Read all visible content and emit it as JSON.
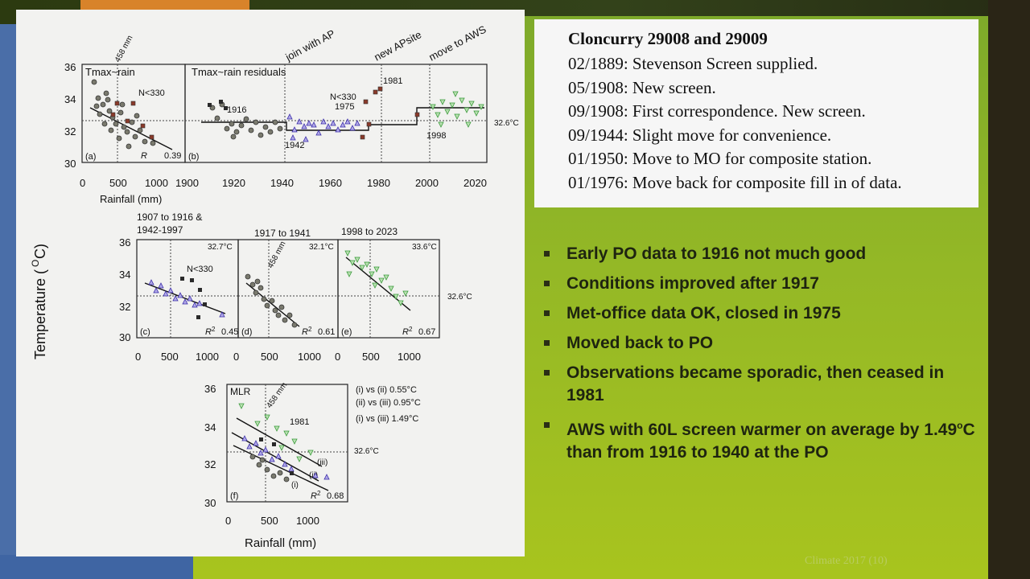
{
  "figure": {
    "y_axis_title": "Temperature (",
    "y_axis_unit": "C)",
    "y_axis_deg": "O",
    "panel_a": {
      "title": "Tmax~rain",
      "letter": "(a)",
      "r2": "R",
      "r2_val": "0.39",
      "n_label": "N<330",
      "top_label": "458 mm",
      "xticks": [
        "0",
        "500",
        "1000"
      ],
      "yticks": [
        "36",
        "34",
        "32",
        "30"
      ],
      "xlabel": "Rainfall (mm)"
    },
    "panel_b": {
      "title": "Tmax~rain residuals",
      "letter": "(b)",
      "xticks": [
        "1900",
        "1920",
        "1940",
        "1960",
        "1980",
        "2000",
        "2020"
      ],
      "events": [
        "join with AP",
        "new APsite",
        "move to AWS"
      ],
      "annotations": [
        "1916",
        "1942",
        "N<330",
        "1975",
        "1981",
        "1998",
        "32.6°C"
      ]
    },
    "panel_c": {
      "title_line1": "1907 to 1916 &",
      "title_line2": "1942-1997",
      "temp": "32.7°C",
      "letter": "(c)",
      "r2_val": "0.45",
      "n_label": "N<330"
    },
    "panel_d": {
      "title": "1917 to 1941",
      "temp": "32.1°C",
      "letter": "(d)",
      "r2_val": "0.61",
      "top_label": "458 mm"
    },
    "panel_e": {
      "title": "1998 to 2023",
      "temp": "33.6°C",
      "letter": "(e)",
      "r2_val": "0.67",
      "ref": "32.6°C"
    },
    "row2_xticks": [
      "0",
      "500",
      "1000"
    ],
    "panel_f": {
      "title": "MLR",
      "letter": "(f)",
      "r2_val": "0.68",
      "year": "1981",
      "top_label": "458 mm",
      "ref": "32.6°C",
      "lines": [
        "(iii)",
        "(ii)",
        "(i)"
      ],
      "legend": [
        "(i) vs (ii) 0.55°C",
        "(ii) vs (iii) 0.95°C",
        "(i) vs (iii) 1.49°C"
      ],
      "xticks": [
        "0",
        "500",
        "1000"
      ],
      "xlabel": "Rainfall (mm)"
    }
  },
  "info": {
    "title": "Cloncurry 29008 and 29009",
    "lines": [
      "02/1889: Stevenson Screen supplied.",
      "05/1908: New screen.",
      "09/1908: First correspondence. New screen.",
      "09/1944: Slight move for convenience.",
      "01/1950: Move to MO for composite station.",
      "01/1976: Move back for composite fill in of data."
    ]
  },
  "bullets": [
    "Early PO data to 1916 not much good",
    "Conditions improved after 1917",
    "Met-office data OK, closed in 1975",
    "Moved back to PO",
    "Observations became sporadic, then ceased in 1981",
    "AWS with 60L screen warmer on average by 1.49"
  ],
  "bullet6_sup": "o",
  "bullet6_tail": "C than from 1916 to 1940 at the PO",
  "watermark": "Climate 2017 (10)"
}
